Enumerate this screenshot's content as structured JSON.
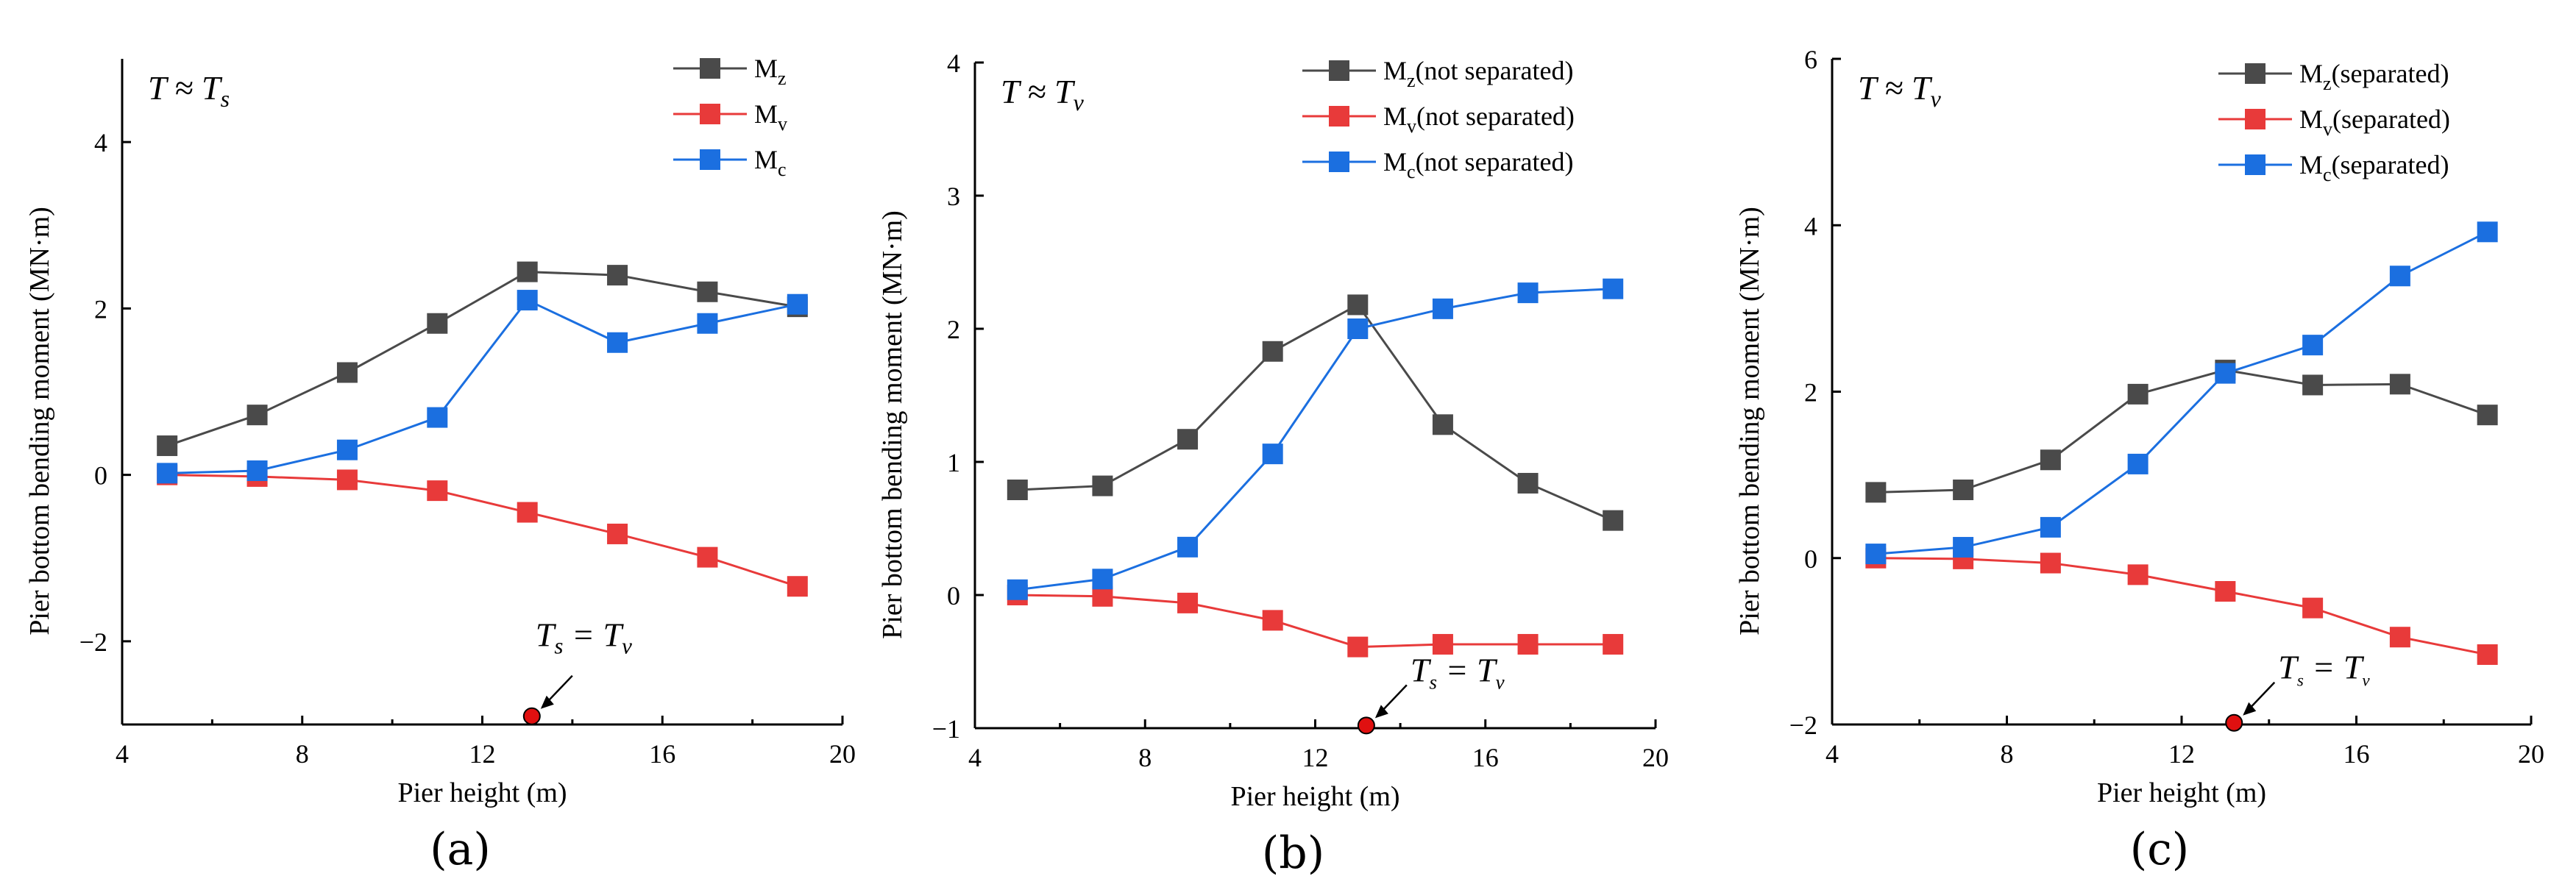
{
  "chart_data": [
    {
      "type": "line",
      "panel_label": "(a)",
      "annotation": "T ≈ Ts",
      "xlabel": "Pier height (m)",
      "ylabel": "Pier bottom bending moment (MN·m)",
      "xlim": [
        4,
        20
      ],
      "ylim": [
        -3,
        5
      ],
      "xticks": [
        4,
        8,
        12,
        16,
        20
      ],
      "yticks": [
        -2,
        0,
        2,
        4
      ],
      "legend_position": "top-right",
      "x": [
        5,
        7,
        9,
        11,
        13,
        15,
        17,
        19
      ],
      "series": [
        {
          "name": "Mz",
          "color": "#4a4a4a",
          "values": [
            0.35,
            0.72,
            1.23,
            1.82,
            2.44,
            2.4,
            2.2,
            2.02
          ]
        },
        {
          "name": "Mv",
          "color": "#e83a3a",
          "values": [
            0.0,
            -0.02,
            -0.06,
            -0.19,
            -0.45,
            -0.71,
            -0.99,
            -1.34
          ]
        },
        {
          "name": "Mc",
          "color": "#1b6fe0",
          "values": [
            0.02,
            0.05,
            0.3,
            0.69,
            2.1,
            1.59,
            1.82,
            2.05
          ]
        }
      ],
      "point_annotation": {
        "label": "Ts = Tv",
        "x": 13.1,
        "y": -2.9
      }
    },
    {
      "type": "line",
      "panel_label": "(b)",
      "annotation": "T ≈ Tv",
      "xlabel": "Pier height (m)",
      "ylabel": "Pier bottom bending moment (MN·m)",
      "xlim": [
        4,
        20
      ],
      "ylim": [
        -1,
        4
      ],
      "xticks": [
        4,
        8,
        12,
        16,
        20
      ],
      "yticks": [
        -1,
        0,
        1,
        2,
        3,
        4
      ],
      "legend_position": "top-right",
      "x": [
        5,
        7,
        9,
        11,
        13,
        15,
        17,
        19
      ],
      "series": [
        {
          "name": "Mz(not separated)",
          "color": "#4a4a4a",
          "values": [
            0.79,
            0.82,
            1.17,
            1.83,
            2.18,
            1.28,
            0.84,
            0.56
          ]
        },
        {
          "name": "Mv(not separated)",
          "color": "#e83a3a",
          "values": [
            0.0,
            -0.01,
            -0.06,
            -0.19,
            -0.39,
            -0.37,
            -0.37,
            -0.37
          ]
        },
        {
          "name": "Mc(not separated)",
          "color": "#1b6fe0",
          "values": [
            0.04,
            0.12,
            0.36,
            1.06,
            2.0,
            2.15,
            2.27,
            2.3
          ]
        }
      ],
      "point_annotation": {
        "label": "Ts = Tv",
        "x": 13.2,
        "y": -0.98
      }
    },
    {
      "type": "line",
      "panel_label": "(c)",
      "annotation": "T ≈ Tv",
      "xlabel": "Pier height (m)",
      "ylabel": "Pier bottom bending moment (MN·m)",
      "xlim": [
        4,
        20
      ],
      "ylim": [
        -2,
        6
      ],
      "xticks": [
        4,
        8,
        12,
        16,
        20
      ],
      "yticks": [
        -2,
        0,
        2,
        4,
        6
      ],
      "legend_position": "top-right",
      "x": [
        5,
        7,
        9,
        11,
        13,
        15,
        17,
        19
      ],
      "series": [
        {
          "name": "Mz(separated)",
          "color": "#4a4a4a",
          "values": [
            0.79,
            0.82,
            1.18,
            1.97,
            2.26,
            2.08,
            2.09,
            1.72
          ]
        },
        {
          "name": "Mv(separated)",
          "color": "#e83a3a",
          "values": [
            0.0,
            -0.01,
            -0.06,
            -0.2,
            -0.4,
            -0.6,
            -0.95,
            -1.16
          ]
        },
        {
          "name": "Mc(separated)",
          "color": "#1b6fe0",
          "values": [
            0.05,
            0.13,
            0.37,
            1.13,
            2.22,
            2.56,
            3.39,
            3.92
          ]
        }
      ],
      "point_annotation": {
        "label": "Ts = Tv",
        "x": 13.2,
        "y": -1.98
      }
    }
  ]
}
